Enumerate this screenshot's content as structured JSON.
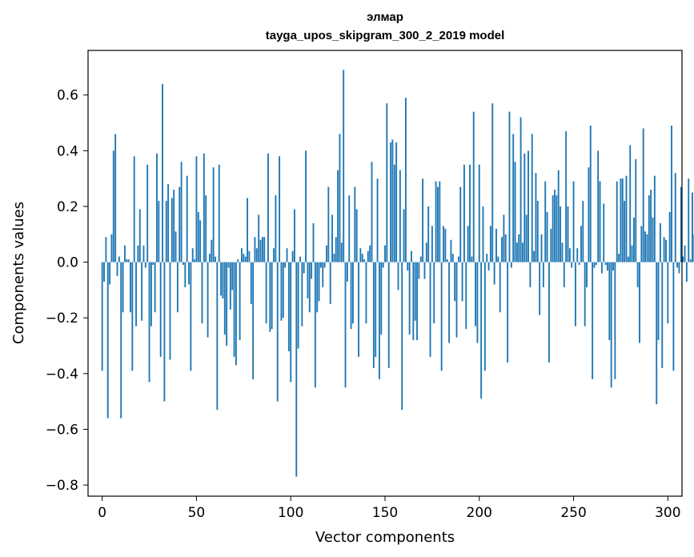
{
  "chart_data": {
    "type": "bar",
    "title": "элмар",
    "subtitle": "tayga_upos_skipgram_300_2_2019 model",
    "xlabel": "Vector components",
    "ylabel": "Components values",
    "xlim": [
      -7.5,
      307.5
    ],
    "ylim": [
      -0.84,
      0.76
    ],
    "xticks": [
      0,
      50,
      100,
      150,
      200,
      250,
      300
    ],
    "yticks": [
      -0.8,
      -0.6,
      -0.4,
      -0.2,
      0.0,
      0.2,
      0.4,
      0.6
    ],
    "ytick_labels": [
      "−0.8",
      "−0.6",
      "−0.4",
      "−0.2",
      "0.0",
      "0.2",
      "0.4",
      "0.6"
    ],
    "color": "#1f77b4",
    "grid": false,
    "values": [
      -0.39,
      -0.07,
      0.09,
      -0.56,
      -0.08,
      0.1,
      0.4,
      0.46,
      -0.05,
      0.02,
      -0.56,
      -0.18,
      0.06,
      0.01,
      0.01,
      -0.18,
      -0.39,
      0.38,
      -0.23,
      0.06,
      0.19,
      -0.21,
      0.06,
      -0.02,
      0.35,
      -0.43,
      -0.23,
      -0.01,
      -0.18,
      0.39,
      0.22,
      -0.34,
      0.64,
      -0.5,
      0.22,
      0.28,
      -0.35,
      0.23,
      0.26,
      0.11,
      -0.18,
      0.27,
      0.36,
      -0.01,
      -0.09,
      0.31,
      -0.08,
      -0.39,
      0.05,
      0.01,
      0.38,
      0.18,
      0.15,
      -0.22,
      0.39,
      0.24,
      -0.27,
      0.03,
      0.08,
      0.34,
      0.02,
      -0.53,
      0.35,
      -0.12,
      -0.13,
      -0.26,
      -0.3,
      -0.02,
      -0.17,
      -0.1,
      -0.34,
      -0.37,
      0.01,
      -0.28,
      0.05,
      0.03,
      0.02,
      0.23,
      0.04,
      -0.15,
      -0.42,
      0.09,
      0.05,
      0.17,
      0.08,
      0.09,
      0.09,
      -0.22,
      0.39,
      -0.25,
      -0.24,
      0.05,
      0.24,
      -0.5,
      0.38,
      -0.21,
      -0.2,
      -0.02,
      0.05,
      -0.32,
      -0.43,
      0.04,
      0.19,
      -0.77,
      -0.31,
      0.02,
      -0.23,
      -0.04,
      0.4,
      -0.13,
      -0.18,
      -0.06,
      0.14,
      -0.45,
      -0.18,
      -0.14,
      -0.02,
      -0.09,
      -0.02,
      0.06,
      0.27,
      -0.15,
      0.17,
      0.03,
      0.09,
      0.33,
      0.46,
      0.07,
      0.69,
      -0.45,
      -0.07,
      0.24,
      -0.24,
      -0.22,
      0.27,
      0.19,
      -0.34,
      0.05,
      0.03,
      0.01,
      -0.22,
      0.04,
      0.06,
      0.36,
      -0.38,
      -0.34,
      0.3,
      -0.42,
      -0.26,
      -0.02,
      0.06,
      0.57,
      -0.38,
      0.43,
      0.44,
      0.35,
      0.43,
      -0.1,
      0.33,
      -0.53,
      0.19,
      0.59,
      -0.03,
      -0.26,
      0.04,
      -0.28,
      -0.21,
      -0.28,
      -0.06,
      0.02,
      0.3,
      -0.06,
      0.07,
      0.2,
      -0.34,
      0.13,
      -0.22,
      0.29,
      0.27,
      0.29,
      -0.39,
      0.13,
      0.12,
      0.01,
      -0.29,
      0.08,
      0.03,
      -0.14,
      -0.27,
      0.02,
      0.27,
      -0.14,
      0.35,
      -0.24,
      0.13,
      0.35,
      0.02,
      0.54,
      -0.23,
      -0.29,
      0.35,
      -0.49,
      0.2,
      -0.39,
      0.03,
      -0.03,
      0.13,
      0.57,
      -0.08,
      0.12,
      0.02,
      -0.18,
      0.09,
      0.17,
      0.1,
      -0.36,
      0.54,
      -0.02,
      0.46,
      0.36,
      0.07,
      0.1,
      0.52,
      0.07,
      0.39,
      0.17,
      0.4,
      -0.09,
      0.46,
      0.04,
      0.32,
      0.22,
      -0.19,
      0.1,
      -0.09,
      0.29,
      0.18,
      -0.36,
      0.12,
      0.24,
      0.26,
      0.24,
      0.33,
      0.2,
      0.07,
      -0.09,
      0.47,
      0.2,
      0.05,
      -0.02,
      0.29,
      -0.23,
      0.05,
      -0.01,
      0.13,
      0.22,
      -0.23,
      -0.09,
      0.34,
      0.49,
      -0.42,
      -0.02,
      -0.01,
      0.4,
      0.29,
      -0.04,
      0.21,
      -0.01,
      -0.03,
      -0.28,
      -0.45,
      -0.03,
      -0.42,
      0.29,
      0.03,
      0.3,
      0.3,
      0.22,
      0.31,
      0.02,
      0.42,
      0.06,
      0.16,
      0.37,
      -0.09,
      -0.29,
      0.13,
      0.48,
      0.11,
      0.1,
      0.24,
      0.26,
      0.16,
      0.31,
      -0.51,
      -0.28,
      0.14,
      -0.38,
      0.09,
      0.08,
      -0.22,
      0.18,
      0.49,
      -0.39,
      0.32,
      -0.02,
      -0.04,
      0.27,
      0.02,
      0.06,
      -0.07,
      0.3,
      0.01,
      0.25,
      0.1,
      -0.01
    ]
  }
}
